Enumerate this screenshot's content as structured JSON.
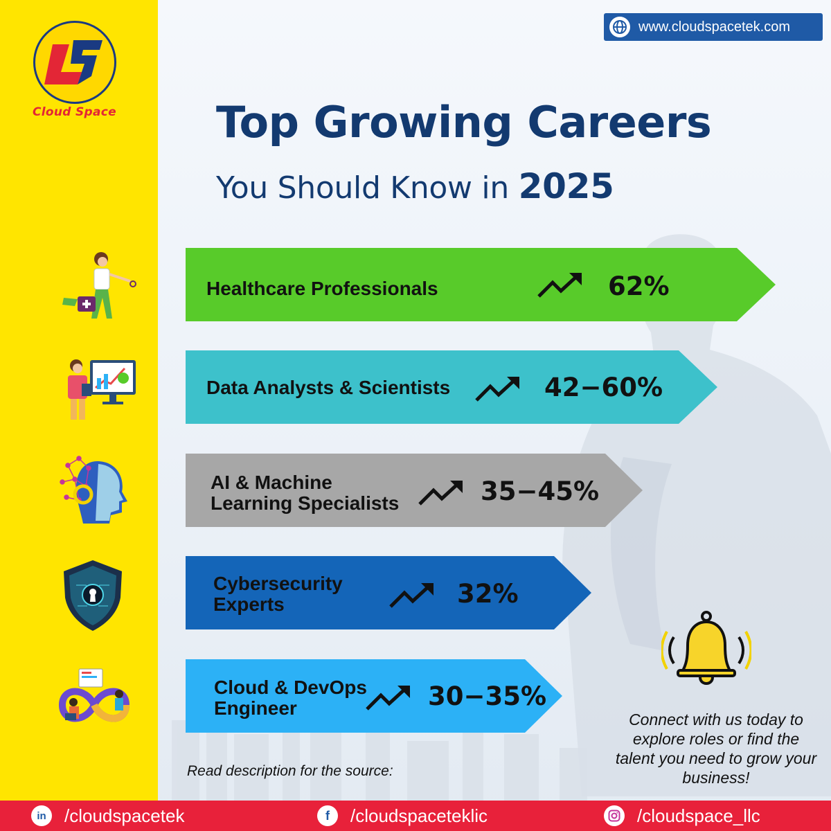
{
  "brand": {
    "logo_text": "Cloud Space",
    "website": "www.cloudspacetek.com"
  },
  "title": "Top Growing Careers",
  "subtitle": {
    "prefix": "You Should Know in",
    "year": "2025"
  },
  "careers": [
    {
      "line1": "Healthcare Professionals",
      "line2": "",
      "value": "62%",
      "color": "#58cb2a",
      "icon": "healthcare-worker-icon"
    },
    {
      "line1": "Data Analysts & Scientists",
      "line2": "",
      "value": "42−60%",
      "color": "#3dc1cb",
      "icon": "data-analyst-icon"
    },
    {
      "line1": "AI & Machine",
      "line2": "Learning Specialists",
      "value": "35−45%",
      "color": "#a7a7a7",
      "icon": "ai-head-icon"
    },
    {
      "line1": "Cybersecurity",
      "line2": "Experts",
      "value": "32%",
      "color": "#1465b8",
      "icon": "shield-lock-icon"
    },
    {
      "line1": "Cloud & DevOps",
      "line2": "Engineer",
      "value": "30−35%",
      "color": "#2cb1f6",
      "icon": "devops-icon"
    }
  ],
  "source_note": "Read description for the source:",
  "cta": "Connect with us today to explore roles or find the talent you need to grow your business!",
  "social": {
    "linkedin": {
      "icon_text": "in",
      "handle": "/cloudspacetek"
    },
    "facebook": {
      "icon_text": "f",
      "handle": "/cloudspaceteklic"
    },
    "instagram": {
      "icon_text": "",
      "handle": "/cloudspace_llc"
    }
  },
  "colors": {
    "yellow": "#ffe500",
    "navy": "#133a70",
    "footer_red": "#e8213a",
    "website_blue": "#1f5aa6"
  }
}
